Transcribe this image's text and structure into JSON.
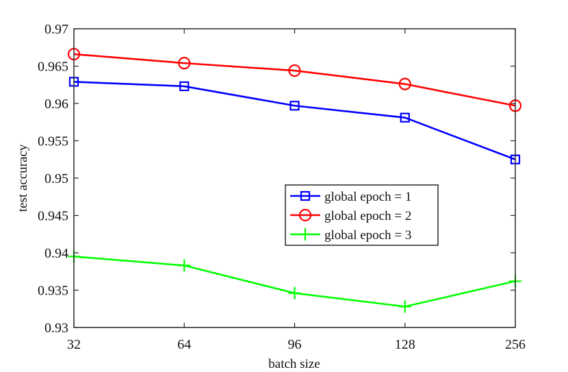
{
  "chart_data": {
    "type": "line",
    "title": "",
    "xlabel": "batch size",
    "ylabel": "test accuracy",
    "categories": [
      "32",
      "64",
      "96",
      "128",
      "256"
    ],
    "ylim": [
      0.93,
      0.97
    ],
    "yticks": [
      0.93,
      0.935,
      0.94,
      0.945,
      0.95,
      0.955,
      0.96,
      0.965,
      0.97
    ],
    "ytick_labels": [
      "0.93",
      "0.935",
      "0.94",
      "0.945",
      "0.95",
      "0.955",
      "0.96",
      "0.965",
      "0.97"
    ],
    "grid": false,
    "legend_position": "center-right",
    "series": [
      {
        "name": "global epoch = 1",
        "color": "#0000ff",
        "marker": "square",
        "values": [
          0.9629,
          0.9623,
          0.9597,
          0.9581,
          0.9525
        ]
      },
      {
        "name": "global epoch = 2",
        "color": "#ff0000",
        "marker": "circle",
        "values": [
          0.9666,
          0.9654,
          0.9644,
          0.9626,
          0.9597
        ]
      },
      {
        "name": "global epoch = 3",
        "color": "#00ff00",
        "marker": "plus",
        "values": [
          0.9395,
          0.9383,
          0.9346,
          0.9328,
          0.9362
        ]
      }
    ]
  }
}
